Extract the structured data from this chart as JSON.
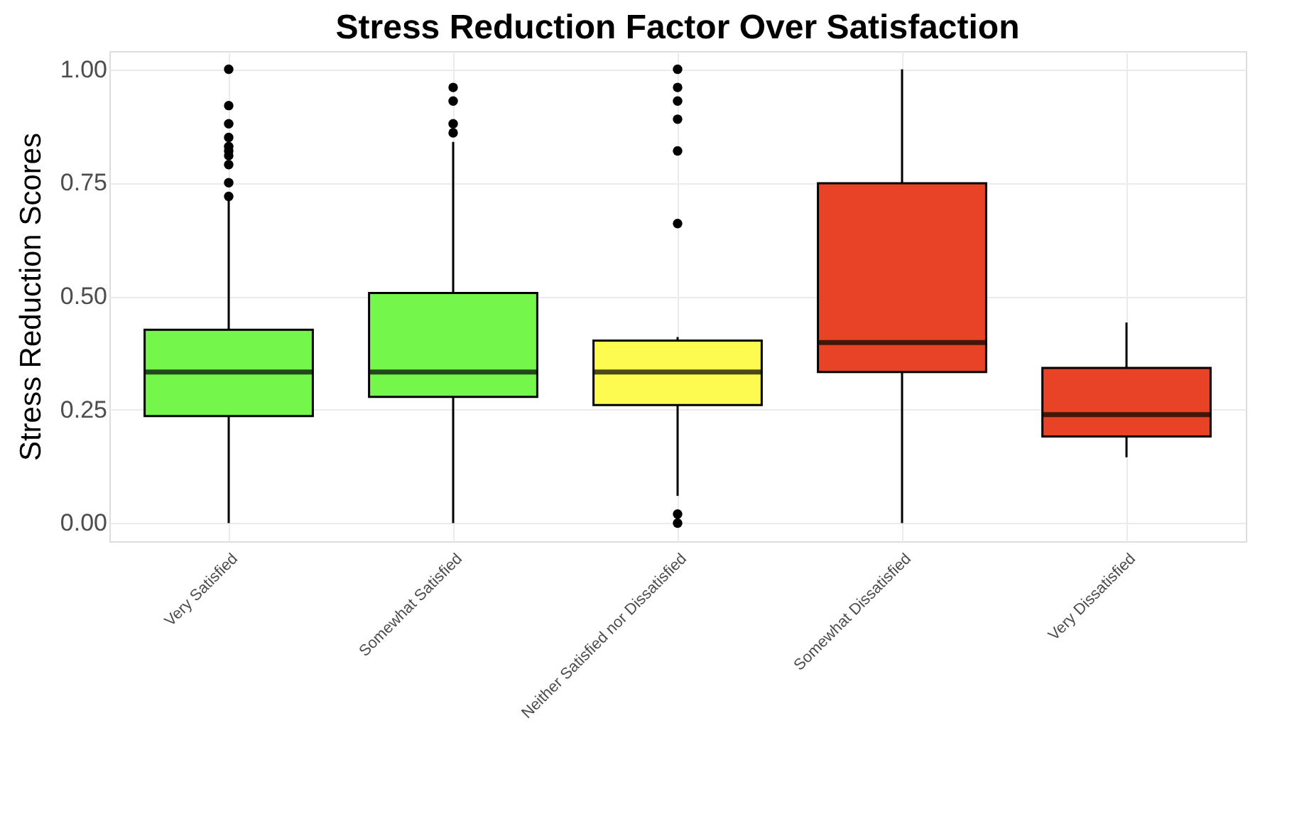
{
  "chart_data": {
    "type": "box",
    "title": "Stress Reduction Factor Over Satisfaction",
    "ylabel": "Stress Reduction Scores",
    "categories": [
      "Very Satisfied",
      "Somewhat Satisfied",
      "Neither Satisfied nor Dissatisfied",
      "Somewhat Dissatisfied",
      "Very Dissatisfied"
    ],
    "colors": [
      "#74f74a",
      "#74f74a",
      "#fdfb50",
      "#e84326",
      "#e84326"
    ],
    "boxes": [
      {
        "low": 0,
        "q1": 0.236,
        "median": 0.333,
        "q3": 0.426,
        "high": 0.71,
        "outliers": [
          1.0,
          0.92,
          0.88,
          0.85,
          0.83,
          0.82,
          0.81,
          0.79,
          0.75,
          0.72
        ]
      },
      {
        "low": 0,
        "q1": 0.278,
        "median": 0.333,
        "q3": 0.507,
        "high": 0.84,
        "outliers": [
          0.96,
          0.93,
          0.88,
          0.86
        ]
      },
      {
        "low": 0.06,
        "q1": 0.26,
        "median": 0.333,
        "q3": 0.402,
        "high": 0.41,
        "outliers": [
          1.0,
          0.96,
          0.93,
          0.89,
          0.82,
          0.66,
          0.02,
          0.0
        ]
      },
      {
        "low": 0,
        "q1": 0.333,
        "median": 0.398,
        "q3": 0.749,
        "high": 1.0
      },
      {
        "low": 0.145,
        "q1": 0.191,
        "median": 0.239,
        "q3": 0.342,
        "high": 0.442
      }
    ],
    "ylim": [
      -0.04,
      1.04
    ],
    "yticks": [
      {
        "value": 0,
        "label": "0.00"
      },
      {
        "value": 0.25,
        "label": "0.25"
      },
      {
        "value": 0.5,
        "label": "0.50"
      },
      {
        "value": 0.75,
        "label": "0.75"
      },
      {
        "value": 1,
        "label": "1.00"
      }
    ],
    "grid": true
  }
}
